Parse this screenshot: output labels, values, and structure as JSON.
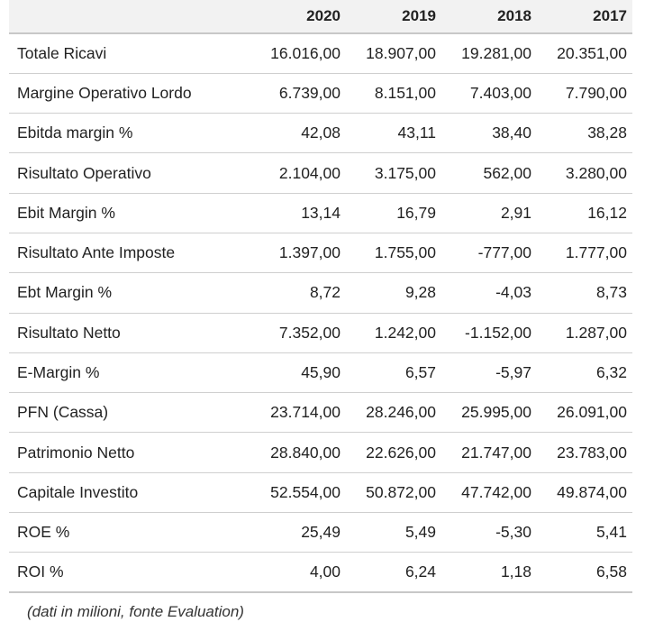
{
  "table": {
    "headers": [
      "",
      "2020",
      "2019",
      "2018",
      "2017"
    ],
    "rows": [
      {
        "label": "Totale Ricavi",
        "values": [
          "16.016,00",
          "18.907,00",
          "19.281,00",
          "20.351,00"
        ]
      },
      {
        "label": "Margine Operativo Lordo",
        "values": [
          "6.739,00",
          "8.151,00",
          "7.403,00",
          "7.790,00"
        ]
      },
      {
        "label": "Ebitda margin %",
        "values": [
          "42,08",
          "43,11",
          "38,40",
          "38,28"
        ]
      },
      {
        "label": "Risultato Operativo",
        "values": [
          "2.104,00",
          "3.175,00",
          "562,00",
          "3.280,00"
        ]
      },
      {
        "label": "Ebit Margin %",
        "values": [
          "13,14",
          "16,79",
          "2,91",
          "16,12"
        ]
      },
      {
        "label": "Risultato Ante Imposte",
        "values": [
          "1.397,00",
          "1.755,00",
          "-777,00",
          "1.777,00"
        ]
      },
      {
        "label": "Ebt Margin %",
        "values": [
          "8,72",
          "9,28",
          "-4,03",
          "8,73"
        ]
      },
      {
        "label": "Risultato Netto",
        "values": [
          "7.352,00",
          "1.242,00",
          "-1.152,00",
          "1.287,00"
        ]
      },
      {
        "label": "E-Margin %",
        "values": [
          "45,90",
          "6,57",
          "-5,97",
          "6,32"
        ]
      },
      {
        "label": "PFN (Cassa)",
        "values": [
          "23.714,00",
          "28.246,00",
          "25.995,00",
          "26.091,00"
        ]
      },
      {
        "label": "Patrimonio Netto",
        "values": [
          "28.840,00",
          "22.626,00",
          "21.747,00",
          "23.783,00"
        ]
      },
      {
        "label": "Capitale Investito",
        "values": [
          "52.554,00",
          "50.872,00",
          "47.742,00",
          "49.874,00"
        ]
      },
      {
        "label": "ROE %",
        "values": [
          "25,49",
          "5,49",
          "-5,30",
          "5,41"
        ]
      },
      {
        "label": "ROI %",
        "values": [
          "4,00",
          "6,24",
          "1,18",
          "6,58"
        ]
      }
    ]
  },
  "note": "(dati in milioni, fonte Evaluation)"
}
